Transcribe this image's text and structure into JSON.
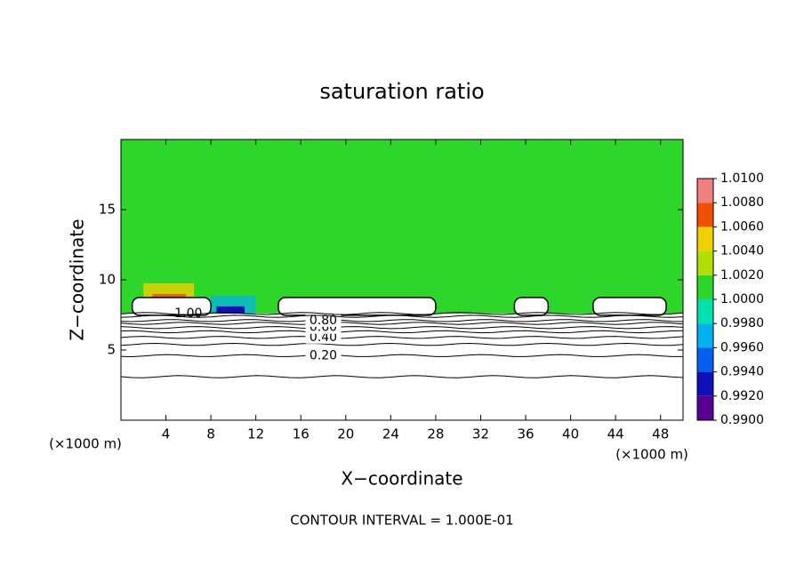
{
  "chart_data": {
    "type": "contour",
    "title": "saturation ratio",
    "xlabel": "X−coordinate",
    "ylabel": "Z−coordinate",
    "x_unit": "(×1000 m)",
    "note": "CONTOUR INTERVAL = 1.000E-01",
    "xlim": [
      0,
      50
    ],
    "xticks": [
      4,
      8,
      12,
      16,
      20,
      24,
      28,
      32,
      36,
      40,
      44,
      48
    ],
    "ylim": [
      0,
      20
    ],
    "yticks": [
      5,
      10,
      15
    ],
    "field_color": "#2ed52a",
    "colorbar": {
      "lim": [
        0.99,
        1.01
      ],
      "ticks": [
        {
          "value": 0.99,
          "label": "0.9900"
        },
        {
          "value": 0.992,
          "label": "0.9920"
        },
        {
          "value": 0.994,
          "label": "0.9940"
        },
        {
          "value": 0.996,
          "label": "0.9960"
        },
        {
          "value": 0.998,
          "label": "0.9980"
        },
        {
          "value": 1.0,
          "label": "1.0000"
        },
        {
          "value": 1.002,
          "label": "1.0020"
        },
        {
          "value": 1.004,
          "label": "1.0040"
        },
        {
          "value": 1.006,
          "label": "1.0060"
        },
        {
          "value": 1.008,
          "label": "1.0080"
        },
        {
          "value": 1.01,
          "label": "1.0100"
        }
      ],
      "colors": [
        "#5a0090",
        "#1010b8",
        "#0060f0",
        "#00b0f0",
        "#00e0b0",
        "#2ed52a",
        "#b0e000",
        "#f0d000",
        "#f05000",
        "#f08080"
      ]
    },
    "contours": [
      {
        "level": 0.1,
        "height": 3.1
      },
      {
        "level": 0.2,
        "height": 4.6,
        "label": "0.20"
      },
      {
        "level": 0.3,
        "height": 5.4
      },
      {
        "level": 0.4,
        "height": 5.9,
        "label": "0.40"
      },
      {
        "level": 0.5,
        "height": 6.3
      },
      {
        "level": 0.6,
        "height": 6.6,
        "label": "0.60"
      },
      {
        "level": 0.7,
        "height": 6.9
      },
      {
        "level": 0.8,
        "height": 7.1,
        "label": "0.80"
      },
      {
        "level": 0.9,
        "height": 7.4
      },
      {
        "level": 1.0,
        "height": 7.6,
        "label": "1.00"
      }
    ]
  }
}
